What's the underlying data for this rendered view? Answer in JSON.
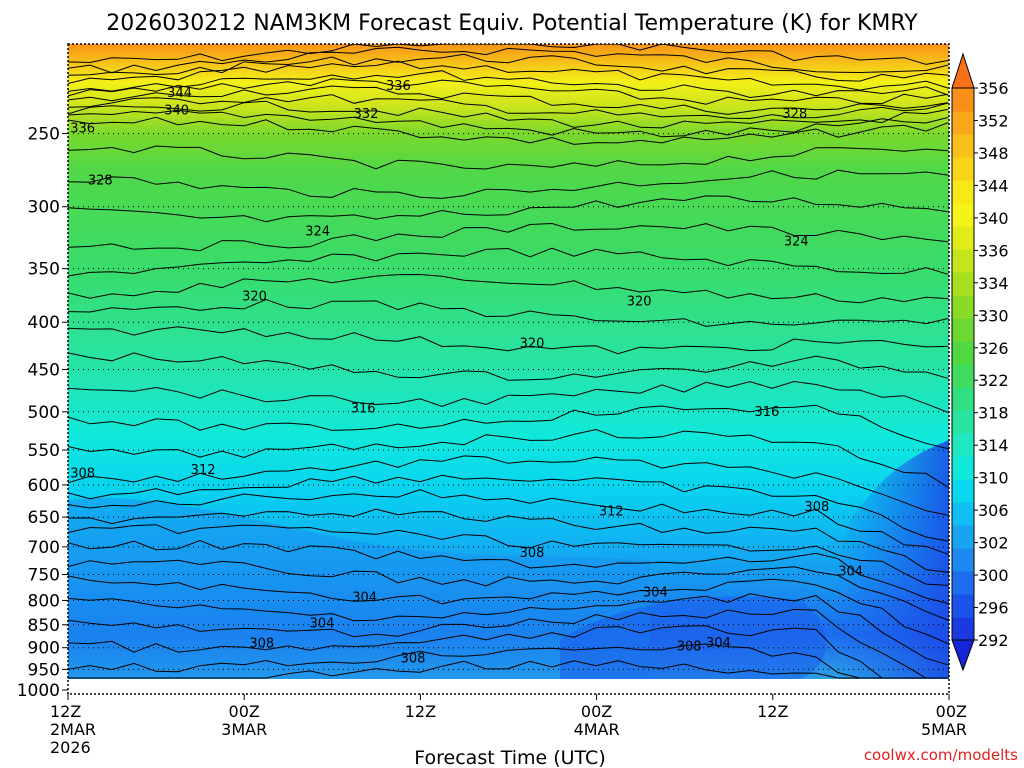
{
  "chart_data": {
    "type": "contour",
    "title": "2026030212 NAM3KM Forecast Equiv. Potential Temperature (K) for KMRY",
    "xlabel": "Forecast Time (UTC)",
    "ylabel": "",
    "credit": "coolwx.com/modelts",
    "x_ticks": [
      {
        "hour": 0,
        "lines": [
          "12Z",
          "2MAR",
          "2026"
        ]
      },
      {
        "hour": 12,
        "lines": [
          "00Z",
          "3MAR"
        ]
      },
      {
        "hour": 24,
        "lines": [
          "12Z"
        ]
      },
      {
        "hour": 36,
        "lines": [
          "00Z",
          "4MAR"
        ]
      },
      {
        "hour": 48,
        "lines": [
          "12Z"
        ]
      },
      {
        "hour": 60,
        "lines": [
          "00Z",
          "5MAR"
        ]
      }
    ],
    "xlim_hours": [
      0,
      60
    ],
    "y_axis_scale": "log-pressure",
    "ylim_hPa": [
      1010,
      200
    ],
    "y_ticks": [
      250,
      300,
      350,
      400,
      450,
      500,
      550,
      600,
      650,
      700,
      750,
      800,
      850,
      900,
      950,
      1000
    ],
    "grid": "dotted horizontal lines at each pressure tick",
    "colorbar": {
      "position": "right",
      "levels": [
        292,
        296,
        300,
        302,
        304,
        306,
        308,
        310,
        312,
        314,
        316,
        318,
        320,
        322,
        324,
        326,
        328,
        330,
        332,
        334,
        336,
        338,
        340,
        342,
        344,
        346,
        348,
        350,
        352,
        354,
        356
      ],
      "labels": [
        356,
        352,
        348,
        344,
        340,
        336,
        334,
        330,
        326,
        322,
        318,
        314,
        310,
        306,
        302,
        300,
        296,
        292
      ],
      "colors": [
        "#1a3ae0",
        "#1c52ec",
        "#1e6cf0",
        "#1d88f0",
        "#18a4f2",
        "#10c0f4",
        "#08d8f0",
        "#10e8dc",
        "#20e8c0",
        "#28e4a0",
        "#30e080",
        "#40dc60",
        "#50d840",
        "#6cd830",
        "#88dc28",
        "#a8e020",
        "#c4e41c",
        "#e0ec18",
        "#f4f418",
        "#f8e818",
        "#f8d418",
        "#f8c018",
        "#f8a818",
        "#f89018"
      ]
    },
    "contour_labels": [
      {
        "v": 344,
        "hour": 7.6,
        "p": 226
      },
      {
        "v": 336,
        "hour": 22.5,
        "p": 222
      },
      {
        "v": 340,
        "hour": 7.4,
        "p": 236
      },
      {
        "v": 332,
        "hour": 20.3,
        "p": 238
      },
      {
        "v": 328,
        "hour": 49.5,
        "p": 238
      },
      {
        "v": 336,
        "hour": 1.0,
        "p": 247
      },
      {
        "v": 328,
        "hour": 2.2,
        "p": 281
      },
      {
        "v": 324,
        "hour": 17.0,
        "p": 319
      },
      {
        "v": 324,
        "hour": 49.6,
        "p": 327
      },
      {
        "v": 320,
        "hour": 12.7,
        "p": 375
      },
      {
        "v": 320,
        "hour": 38.9,
        "p": 380
      },
      {
        "v": 320,
        "hour": 31.6,
        "p": 422
      },
      {
        "v": 316,
        "hour": 20.1,
        "p": 496
      },
      {
        "v": 316,
        "hour": 47.6,
        "p": 500
      },
      {
        "v": 312,
        "hour": 9.2,
        "p": 578
      },
      {
        "v": 308,
        "hour": 1.0,
        "p": 583
      },
      {
        "v": 312,
        "hour": 37.0,
        "p": 641
      },
      {
        "v": 308,
        "hour": 51.0,
        "p": 634
      },
      {
        "v": 308,
        "hour": 31.6,
        "p": 711
      },
      {
        "v": 304,
        "hour": 53.3,
        "p": 744
      },
      {
        "v": 304,
        "hour": 40.0,
        "p": 784
      },
      {
        "v": 304,
        "hour": 20.2,
        "p": 794
      },
      {
        "v": 304,
        "hour": 17.3,
        "p": 847
      },
      {
        "v": 308,
        "hour": 13.2,
        "p": 891
      },
      {
        "v": 308,
        "hour": 42.3,
        "p": 897
      },
      {
        "v": 304,
        "hour": 44.3,
        "p": 890
      },
      {
        "v": 308,
        "hour": 23.5,
        "p": 924
      }
    ]
  }
}
